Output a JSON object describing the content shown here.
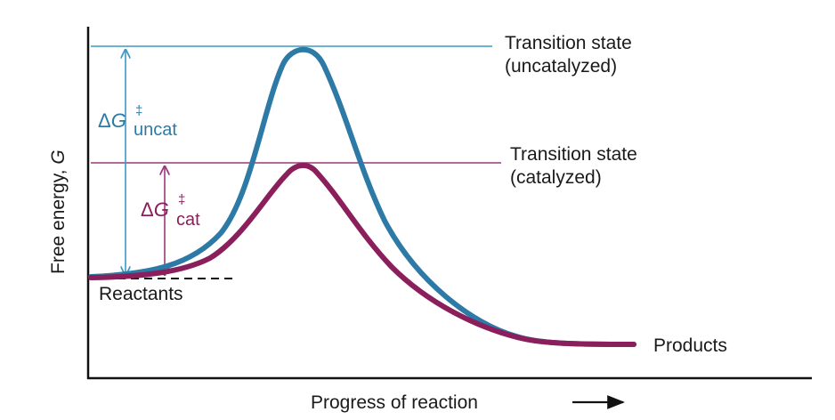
{
  "diagram": {
    "y_axis_label": "Free energy, ",
    "y_axis_symbol": "G",
    "x_axis_label": "Progress of reaction",
    "labels": {
      "ts_uncat_line1": "Transition state",
      "ts_uncat_line2": "(uncatalyzed)",
      "ts_cat_line1": "Transition state",
      "ts_cat_line2": "(catalyzed)",
      "reactants": "Reactants",
      "products": "Products"
    },
    "delta_uncat": {
      "prefix": "Δ",
      "symbol": "G",
      "sup": "‡",
      "sub": "uncat"
    },
    "delta_cat": {
      "prefix": "Δ",
      "symbol": "G",
      "sup": "‡",
      "sub": "cat"
    }
  },
  "colors": {
    "uncatalyzed": "#2e7aa6",
    "catalyzed": "#8a1f5c",
    "uncat_guide": "#3a9ac4",
    "cat_guide": "#9b3a7a",
    "axis": "#111111"
  }
}
